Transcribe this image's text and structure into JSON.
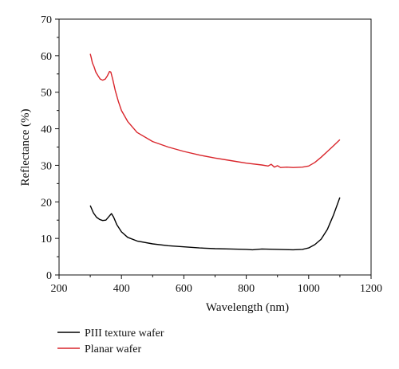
{
  "chart_data": {
    "type": "line",
    "xlabel": "Wavelength (nm)",
    "ylabel": "Reflectance (%)",
    "xlim": [
      200,
      1200
    ],
    "ylim": [
      0,
      70
    ],
    "x_ticks": [
      "200",
      "400",
      "600",
      "800",
      "1000",
      "1200"
    ],
    "y_ticks": [
      "0",
      "10",
      "20",
      "30",
      "40",
      "50",
      "60",
      "70"
    ],
    "grid": false,
    "legend_position": "bottom-left, below plot",
    "series": [
      {
        "name": "PIII texture wafer",
        "color": "#000000",
        "points": [
          [
            300,
            19.0
          ],
          [
            310,
            17.0
          ],
          [
            320,
            15.8
          ],
          [
            330,
            15.2
          ],
          [
            340,
            14.9
          ],
          [
            350,
            15.0
          ],
          [
            360,
            16.0
          ],
          [
            368,
            16.8
          ],
          [
            375,
            15.8
          ],
          [
            385,
            13.8
          ],
          [
            400,
            11.8
          ],
          [
            420,
            10.3
          ],
          [
            450,
            9.3
          ],
          [
            500,
            8.5
          ],
          [
            550,
            8.0
          ],
          [
            600,
            7.7
          ],
          [
            650,
            7.4
          ],
          [
            700,
            7.2
          ],
          [
            750,
            7.1
          ],
          [
            800,
            7.0
          ],
          [
            820,
            6.9
          ],
          [
            850,
            7.1
          ],
          [
            900,
            7.0
          ],
          [
            950,
            6.9
          ],
          [
            980,
            7.0
          ],
          [
            1000,
            7.4
          ],
          [
            1020,
            8.3
          ],
          [
            1040,
            9.8
          ],
          [
            1060,
            12.5
          ],
          [
            1080,
            16.5
          ],
          [
            1100,
            21.2
          ]
        ]
      },
      {
        "name": "Planar wafer",
        "color": "#d9252b",
        "points": [
          [
            300,
            60.5
          ],
          [
            303,
            59.5
          ],
          [
            307,
            58.0
          ],
          [
            312,
            57.0
          ],
          [
            318,
            55.5
          ],
          [
            325,
            54.5
          ],
          [
            332,
            53.6
          ],
          [
            340,
            53.3
          ],
          [
            348,
            53.6
          ],
          [
            355,
            54.5
          ],
          [
            362,
            55.7
          ],
          [
            366,
            55.5
          ],
          [
            372,
            53.5
          ],
          [
            380,
            50.5
          ],
          [
            390,
            47.5
          ],
          [
            400,
            45.0
          ],
          [
            420,
            42.0
          ],
          [
            450,
            39.0
          ],
          [
            500,
            36.5
          ],
          [
            550,
            35.0
          ],
          [
            600,
            33.8
          ],
          [
            650,
            32.8
          ],
          [
            700,
            32.0
          ],
          [
            750,
            31.3
          ],
          [
            800,
            30.6
          ],
          [
            850,
            30.1
          ],
          [
            870,
            29.8
          ],
          [
            880,
            30.3
          ],
          [
            890,
            29.5
          ],
          [
            900,
            29.9
          ],
          [
            910,
            29.4
          ],
          [
            930,
            29.5
          ],
          [
            950,
            29.4
          ],
          [
            980,
            29.5
          ],
          [
            1000,
            29.8
          ],
          [
            1020,
            30.8
          ],
          [
            1040,
            32.2
          ],
          [
            1060,
            33.8
          ],
          [
            1080,
            35.4
          ],
          [
            1100,
            37.0
          ]
        ]
      }
    ]
  }
}
